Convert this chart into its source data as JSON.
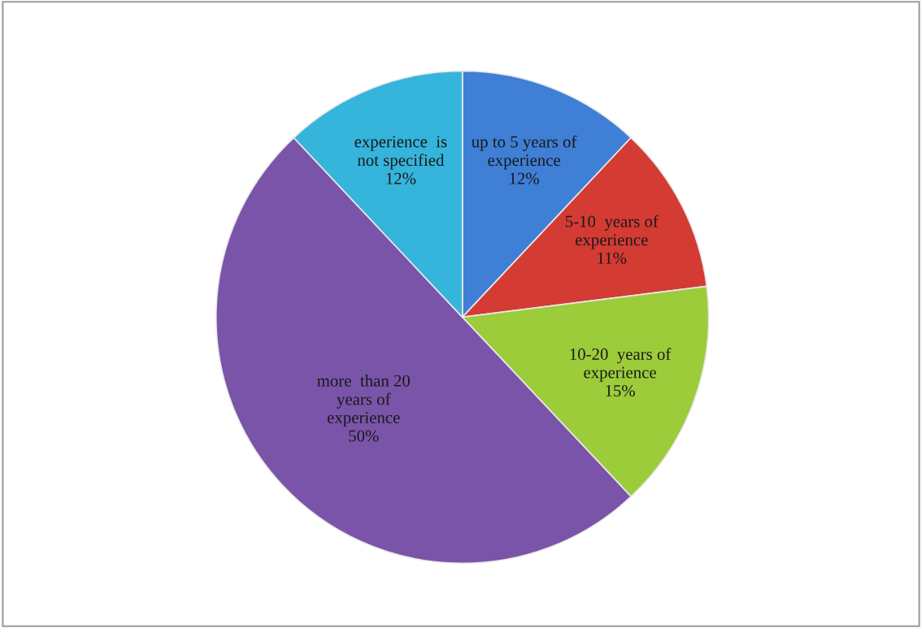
{
  "chart_data": {
    "type": "pie",
    "categories": [
      "up to 5 years of\nexperience",
      "5-10  years of\nexperience",
      "10-20  years of\nexperience",
      "more  than 20\nyears of\nexperience",
      "experience  is\nnot specified"
    ],
    "values": [
      12,
      11,
      15,
      50,
      12
    ],
    "value_labels": [
      "12%",
      "11%",
      "15%",
      "50%",
      "12%"
    ],
    "colors": [
      "#3f7fd6",
      "#d43b33",
      "#9ccc3a",
      "#7a54a8",
      "#35b4dc"
    ],
    "legend": false
  }
}
